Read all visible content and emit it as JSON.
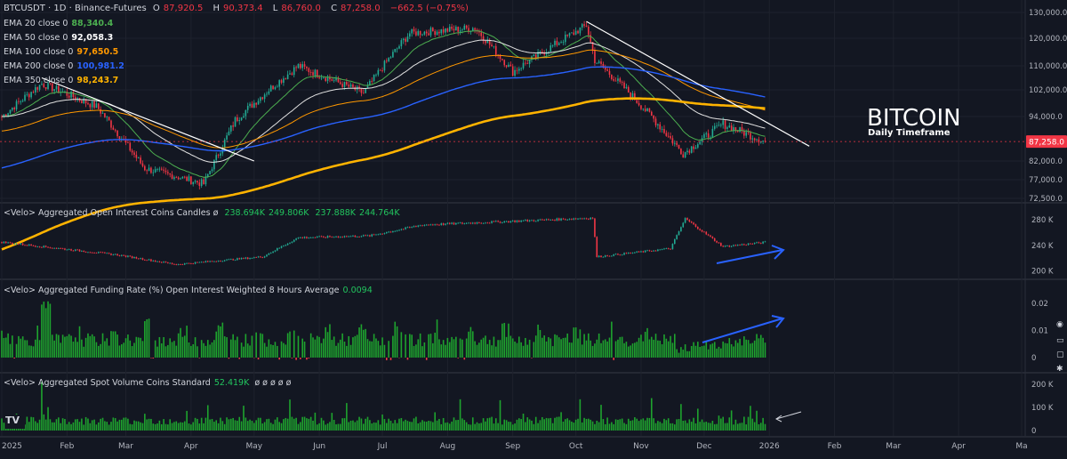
{
  "header": {
    "symbol": "BTCUSDT · 1D · Binance-Futures",
    "ohlc": [
      {
        "label": "O",
        "value": "87,920.5"
      },
      {
        "label": "H",
        "value": "90,373.4"
      },
      {
        "label": "L",
        "value": "86,760.0"
      },
      {
        "label": "C",
        "value": "87,258.0"
      }
    ],
    "change": "−662.5 (−0.75%)"
  },
  "emas": [
    {
      "label": "EMA 20 close 0",
      "value": "88,340.4",
      "color": "#4caf50"
    },
    {
      "label": "EMA 50 close 0",
      "value": "92,058.3",
      "color": "#ffffff"
    },
    {
      "label": "EMA 100 close 0",
      "value": "97,650.5",
      "color": "#ff9800"
    },
    {
      "label": "EMA 200 close 0",
      "value": "100,981.2",
      "color": "#2962ff"
    },
    {
      "label": "EMA 350 close 0",
      "value": "98,243.7",
      "color": "#ffb300"
    }
  ],
  "overlay": {
    "title": "BITCOIN",
    "subtitle": "Daily Timeframe"
  },
  "price_axis": {
    "ticks": [
      "130,000.0",
      "120,000.0",
      "110,000.0",
      "102,000.0",
      "94,000.0",
      "82,000.0",
      "77,000.0",
      "72,500.0"
    ],
    "last_price": "87,258.0"
  },
  "panes": {
    "oi": {
      "title": "<Velo> Aggregated Open Interest Coins Candles",
      "sep": "ø",
      "values": [
        "238.694K",
        "249.806K",
        "237.888K",
        "244.764K"
      ],
      "ticks": [
        "280 K",
        "240 K",
        "200 K"
      ]
    },
    "funding": {
      "title": "<Velo> Aggregated Funding Rate (%) Open Interest Weighted 8 Hours Average",
      "value": "0.0094",
      "ticks": [
        "0.02",
        "0.01",
        "0"
      ]
    },
    "spot": {
      "title": "<Velo> Aggregated Spot Volume Coins Standard",
      "value": "52.419K",
      "extras": [
        "ø",
        "ø",
        "ø",
        "ø",
        "ø"
      ],
      "ticks": [
        "200 K",
        "100 K",
        "0"
      ]
    }
  },
  "time_axis": [
    "2025",
    "Feb",
    "Mar",
    "Apr",
    "May",
    "Jun",
    "Jul",
    "Aug",
    "Sep",
    "Oct",
    "Nov",
    "Dec",
    "2026",
    "Feb",
    "Mar",
    "Apr",
    "Ma"
  ],
  "colors": {
    "up": "#22ab94",
    "down": "#f23645",
    "bg": "#131722",
    "grid": "#1e222d",
    "arrow": "#2962ff",
    "last_price": "#f23645"
  },
  "chart_data": {
    "type": "candlestick",
    "price_anchors": [
      {
        "date": "2025-01-01",
        "close": 94000
      },
      {
        "date": "2025-01-20",
        "close": 104000
      },
      {
        "date": "2025-02-15",
        "close": 97000
      },
      {
        "date": "2025-03-10",
        "close": 80000
      },
      {
        "date": "2025-04-07",
        "close": 76000
      },
      {
        "date": "2025-04-22",
        "close": 93000
      },
      {
        "date": "2025-05-22",
        "close": 110000
      },
      {
        "date": "2025-06-22",
        "close": 101000
      },
      {
        "date": "2025-07-14",
        "close": 122000
      },
      {
        "date": "2025-08-14",
        "close": 124000
      },
      {
        "date": "2025-09-01",
        "close": 108000
      },
      {
        "date": "2025-10-06",
        "close": 125000
      },
      {
        "date": "2025-10-10",
        "close": 112000
      },
      {
        "date": "2025-11-21",
        "close": 84000
      },
      {
        "date": "2025-12-10",
        "close": 92000
      },
      {
        "date": "2025-12-30",
        "close": 87258
      }
    ],
    "oi_anchors": [
      {
        "date": "2025-01-01",
        "value": 245000
      },
      {
        "date": "2025-02-25",
        "value": 225000
      },
      {
        "date": "2025-03-25",
        "value": 210000
      },
      {
        "date": "2025-05-05",
        "value": 222000
      },
      {
        "date": "2025-05-22",
        "value": 252000
      },
      {
        "date": "2025-06-25",
        "value": 255000
      },
      {
        "date": "2025-07-20",
        "value": 272000
      },
      {
        "date": "2025-10-09",
        "value": 283000
      },
      {
        "date": "2025-10-11",
        "value": 222000
      },
      {
        "date": "2025-11-15",
        "value": 235000
      },
      {
        "date": "2025-11-22",
        "value": 282000
      },
      {
        "date": "2025-12-10",
        "value": 238000
      },
      {
        "date": "2025-12-30",
        "value": 244764
      }
    ],
    "funding_range": [
      0,
      0.02
    ],
    "spot_range": [
      0,
      200000
    ],
    "trendlines": [
      {
        "from": {
          "date": "2025-01-20",
          "price": 106000
        },
        "to": {
          "date": "2025-05-01",
          "price": 82000
        }
      },
      {
        "from": {
          "date": "2025-10-06",
          "price": 126500
        },
        "to": {
          "date": "2026-01-20",
          "price": 86000
        }
      }
    ],
    "ylim": [
      72500,
      132000
    ]
  }
}
